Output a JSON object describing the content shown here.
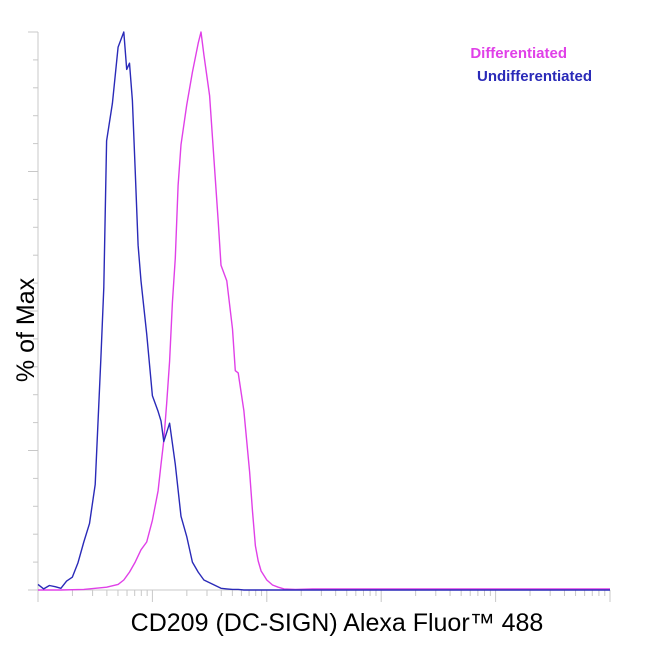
{
  "chart_data": {
    "type": "line",
    "xlabel": "CD209 (DC-SIGN) Alexa Fluor™ 488",
    "ylabel": "% of Max",
    "xscale": "log",
    "ylim": [
      0,
      100
    ],
    "grid": false,
    "legend_position": "top-right",
    "series": [
      {
        "name": "Differentiated",
        "color": "#e040e8",
        "x": [
          0.0,
          0.04,
          0.08,
          0.1,
          0.12,
          0.14,
          0.15,
          0.16,
          0.17,
          0.18,
          0.19,
          0.2,
          0.21,
          0.215,
          0.22,
          0.225,
          0.23,
          0.235,
          0.24,
          0.245,
          0.25,
          0.26,
          0.27,
          0.28,
          0.285,
          0.29,
          0.3,
          0.305,
          0.31,
          0.315,
          0.32,
          0.33,
          0.34,
          0.345,
          0.35,
          0.36,
          0.37,
          0.375,
          0.38,
          0.385,
          0.39,
          0.4,
          0.41,
          0.42,
          0.43,
          0.45,
          0.48,
          0.52,
          0.6,
          0.7,
          0.8,
          0.9,
          1.0
        ],
        "y": [
          0.0,
          0.0,
          0.1,
          0.3,
          0.5,
          1.0,
          1.8,
          3.2,
          5.0,
          7.2,
          8.6,
          12.5,
          17.8,
          22.5,
          26.8,
          33.5,
          41.0,
          51.5,
          59.5,
          72.5,
          79.8,
          86.9,
          92.8,
          98.0,
          100.0,
          95.9,
          88.6,
          81.0,
          73.7,
          66.1,
          58.2,
          55.4,
          46.8,
          39.3,
          38.9,
          32.1,
          21.2,
          14.1,
          7.9,
          5.2,
          3.4,
          1.8,
          0.9,
          0.5,
          0.2,
          0.1,
          0.2,
          0.2,
          0.2,
          0.2,
          0.2,
          0.2,
          0.2
        ]
      },
      {
        "name": "Undifferentiated",
        "color": "#2a2ab8",
        "x": [
          0.0,
          0.01,
          0.02,
          0.03,
          0.04,
          0.05,
          0.06,
          0.07,
          0.08,
          0.09,
          0.1,
          0.11,
          0.115,
          0.12,
          0.13,
          0.14,
          0.15,
          0.155,
          0.16,
          0.165,
          0.17,
          0.175,
          0.18,
          0.19,
          0.2,
          0.21,
          0.215,
          0.22,
          0.23,
          0.24,
          0.25,
          0.26,
          0.27,
          0.28,
          0.29,
          0.3,
          0.31,
          0.32,
          0.33,
          0.34,
          0.35,
          0.36,
          0.38,
          0.4,
          0.42,
          0.45,
          0.5,
          0.6,
          0.7,
          1.0
        ],
        "y": [
          1.0,
          0.2,
          0.8,
          0.6,
          0.3,
          1.6,
          2.3,
          4.9,
          8.6,
          11.9,
          18.9,
          41.6,
          54.2,
          80.5,
          87.2,
          97.3,
          100.0,
          93.3,
          94.4,
          87.7,
          75.2,
          61.8,
          55.4,
          45.9,
          34.8,
          32.0,
          30.3,
          26.6,
          29.9,
          22.5,
          13.2,
          9.6,
          5.0,
          3.2,
          1.8,
          1.3,
          0.8,
          0.3,
          0.2,
          0.1,
          0.1,
          0.0,
          0.0,
          0.0,
          0.0,
          0.0,
          0.0,
          0.0,
          0.0,
          0.0
        ]
      }
    ]
  }
}
